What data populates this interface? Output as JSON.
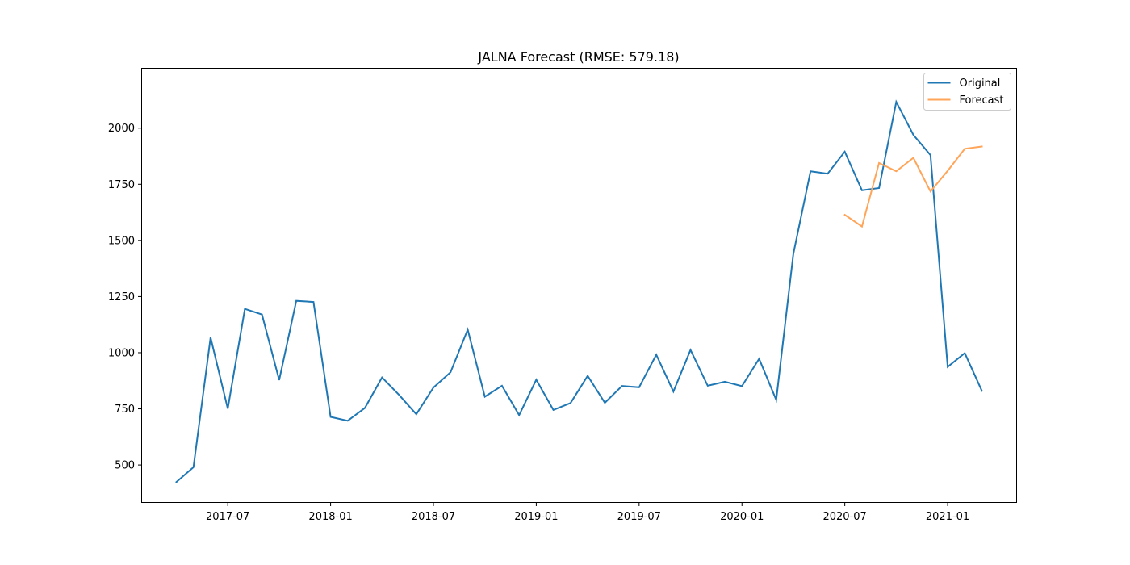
{
  "chart_data": {
    "type": "line",
    "title": "JALNA Forecast (RMSE: 579.18)",
    "xlabel": "",
    "ylabel": "",
    "x_ticks": [
      "2017-07",
      "2018-01",
      "2018-07",
      "2019-01",
      "2019-07",
      "2020-01",
      "2020-07",
      "2021-01"
    ],
    "y_ticks": [
      500,
      750,
      1000,
      1250,
      1500,
      1750,
      2000
    ],
    "xlim": [
      "2017-02",
      "2021-05"
    ],
    "ylim": [
      335,
      2265
    ],
    "grid": false,
    "legend_position": "top-right",
    "series": [
      {
        "name": "Original",
        "color": "#1f77b4",
        "points": [
          [
            "2017-04",
            424
          ],
          [
            "2017-05",
            490
          ],
          [
            "2017-06",
            1068
          ],
          [
            "2017-07",
            751
          ],
          [
            "2017-08",
            1195
          ],
          [
            "2017-09",
            1170
          ],
          [
            "2017-10",
            878
          ],
          [
            "2017-11",
            1231
          ],
          [
            "2017-12",
            1226
          ],
          [
            "2018-01",
            714
          ],
          [
            "2018-02",
            697
          ],
          [
            "2018-03",
            754
          ],
          [
            "2018-04",
            890
          ],
          [
            "2018-05",
            812
          ],
          [
            "2018-06",
            726
          ],
          [
            "2018-07",
            845
          ],
          [
            "2018-08",
            913
          ],
          [
            "2018-09",
            1103
          ],
          [
            "2018-10",
            804
          ],
          [
            "2018-11",
            853
          ],
          [
            "2018-12",
            722
          ],
          [
            "2019-01",
            880
          ],
          [
            "2019-02",
            745
          ],
          [
            "2019-03",
            776
          ],
          [
            "2019-04",
            897
          ],
          [
            "2019-05",
            777
          ],
          [
            "2019-06",
            852
          ],
          [
            "2019-07",
            846
          ],
          [
            "2019-08",
            991
          ],
          [
            "2019-09",
            827
          ],
          [
            "2019-10",
            1012
          ],
          [
            "2019-11",
            853
          ],
          [
            "2019-12",
            871
          ],
          [
            "2020-01",
            851
          ],
          [
            "2020-02",
            973
          ],
          [
            "2020-03",
            790
          ],
          [
            "2020-04",
            1440
          ],
          [
            "2020-05",
            1808
          ],
          [
            "2020-06",
            1797
          ],
          [
            "2020-07",
            1895
          ],
          [
            "2020-08",
            1723
          ],
          [
            "2020-09",
            1733
          ],
          [
            "2020-10",
            2117
          ],
          [
            "2020-11",
            1970
          ],
          [
            "2020-12",
            1880
          ],
          [
            "2021-01",
            937
          ],
          [
            "2021-02",
            998
          ],
          [
            "2021-03",
            830
          ]
        ]
      },
      {
        "name": "Forecast",
        "color": "#ffa55a",
        "points": [
          [
            "2020-07",
            1614
          ],
          [
            "2020-08",
            1562
          ],
          [
            "2020-09",
            1845
          ],
          [
            "2020-10",
            1808
          ],
          [
            "2020-11",
            1868
          ],
          [
            "2020-12",
            1718
          ],
          [
            "2021-01",
            1810
          ],
          [
            "2021-02",
            1908
          ],
          [
            "2021-03",
            1918
          ]
        ]
      }
    ]
  }
}
